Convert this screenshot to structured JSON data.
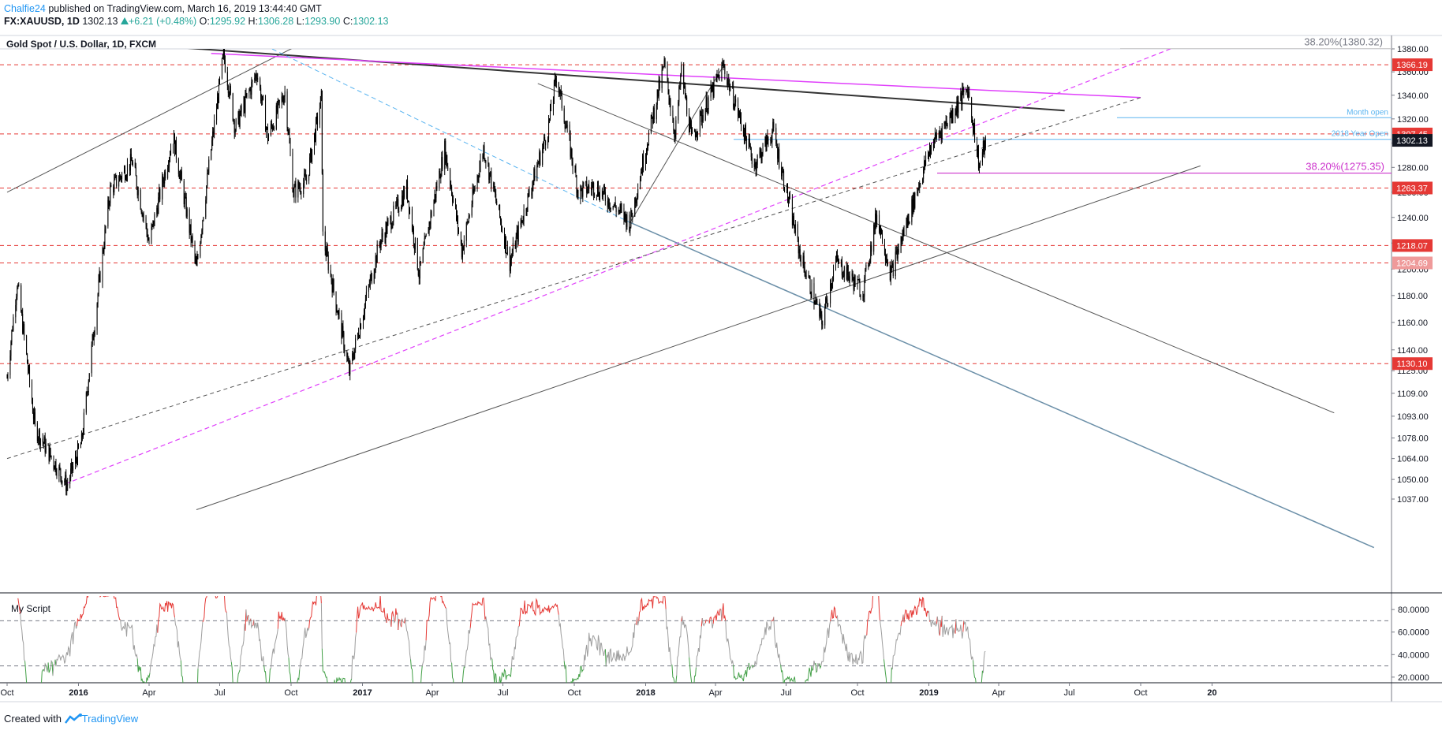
{
  "header": {
    "author": "Chalfie24",
    "published_text": "published on TradingView.com, March 16, 2019 13:44:40 GMT",
    "symbol": "FX:XAUUSD, 1D",
    "last": "1302.13",
    "change": "+6.21 (+0.48%)",
    "open_label": "O:",
    "open": "1295.92",
    "high_label": "H:",
    "high": "1306.28",
    "low_label": "L:",
    "low": "1293.90",
    "close_label": "C:",
    "close": "1302.13"
  },
  "chart_title": "Gold Spot / U.S. Dollar, 1D, FXCM",
  "indicator_title": "My Script",
  "footer": {
    "created_with": "Created with",
    "brand": "TradingView"
  },
  "colors": {
    "candle": "#000000",
    "resistance_red": "#e53935",
    "fib_magenta": "#cc33cc",
    "pivot_blue": "#5ab4f0",
    "trend_black": "#555555",
    "rsi_gray": "#9e9e9e",
    "rsi_overbought": "#e53935",
    "rsi_oversold": "#43a047"
  },
  "chart_data": {
    "type": "candlestick",
    "title": "Gold Spot / U.S. Dollar, 1D, FXCM",
    "x_tick_labels": [
      "Oct",
      "2016",
      "Apr",
      "Jul",
      "Oct",
      "2017",
      "Apr",
      "Jul",
      "Oct",
      "2018",
      "Apr",
      "Jul",
      "Oct",
      "2019",
      "Apr",
      "Jul",
      "Oct",
      "20"
    ],
    "y_tick_labels": [
      "1380.00",
      "1360.00",
      "1340.00",
      "1320.00",
      "1300.00",
      "1280.00",
      "1260.00",
      "1240.00",
      "1220.00",
      "1200.00",
      "1180.00",
      "1160.00",
      "1140.00",
      "1125.00",
      "1109.00",
      "1093.00",
      "1078.00",
      "1064.00",
      "1050.00",
      "1037.00"
    ],
    "y_axis_scale": "log",
    "ylim": [
      1030,
      1392
    ],
    "price_labels": [
      {
        "value": 1366.19,
        "text": "1366.19",
        "style": "red"
      },
      {
        "value": 1307.45,
        "text": "1307.45",
        "style": "red"
      },
      {
        "value": 1302.13,
        "text": "1302.13",
        "style": "last"
      },
      {
        "value": 1263.37,
        "text": "1263.37",
        "style": "red"
      },
      {
        "value": 1218.07,
        "text": "1218.07",
        "style": "red"
      },
      {
        "value": 1204.69,
        "text": "1204.69",
        "style": "red"
      },
      {
        "value": 1130.1,
        "text": "1130.10",
        "style": "red"
      }
    ],
    "horizontal_levels": [
      {
        "value": 1366.19,
        "style": "red-dash"
      },
      {
        "value": 1307.45,
        "style": "red-dash"
      },
      {
        "value": 1263.37,
        "style": "red-dash"
      },
      {
        "value": 1218.07,
        "style": "red-dash"
      },
      {
        "value": 1204.69,
        "style": "red-dash"
      },
      {
        "value": 1130.1,
        "style": "red-dash"
      }
    ],
    "annotations": [
      {
        "text": "38.20%(1380.32)",
        "value": 1380.32
      },
      {
        "text": "38.20%(1275.35)",
        "value": 1275.35
      },
      {
        "text": "Month open",
        "value": 1321
      },
      {
        "text": "2018 Year Open",
        "value": 1303
      }
    ],
    "ohlc_last": {
      "open": 1295.92,
      "high": 1306.28,
      "low": 1293.9,
      "close": 1302.13
    },
    "swing_path": [
      [
        "2015-10-01",
        1120
      ],
      [
        "2015-10-14",
        1190
      ],
      [
        "2015-11-06",
        1085
      ],
      [
        "2015-12-17",
        1046
      ],
      [
        "2016-01-05",
        1075
      ],
      [
        "2016-02-11",
        1262
      ],
      [
        "2016-03-10",
        1285
      ],
      [
        "2016-04-01",
        1220
      ],
      [
        "2016-05-02",
        1305
      ],
      [
        "2016-06-01",
        1200
      ],
      [
        "2016-07-06",
        1375
      ],
      [
        "2016-07-21",
        1312
      ],
      [
        "2016-08-18",
        1360
      ],
      [
        "2016-09-01",
        1305
      ],
      [
        "2016-09-23",
        1343
      ],
      [
        "2016-10-04",
        1260
      ],
      [
        "2016-10-21",
        1270
      ],
      [
        "2016-11-09",
        1337
      ],
      [
        "2016-11-11",
        1225
      ],
      [
        "2016-12-15",
        1124
      ],
      [
        "2017-01-23",
        1220
      ],
      [
        "2017-02-27",
        1263
      ],
      [
        "2017-03-15",
        1196
      ],
      [
        "2017-04-17",
        1295
      ],
      [
        "2017-05-09",
        1214
      ],
      [
        "2017-06-06",
        1296
      ],
      [
        "2017-07-10",
        1205
      ],
      [
        "2017-08-28",
        1311
      ],
      [
        "2017-09-08",
        1357
      ],
      [
        "2017-10-06",
        1260
      ],
      [
        "2017-10-27",
        1265
      ],
      [
        "2017-12-12",
        1236
      ],
      [
        "2018-01-25",
        1366
      ],
      [
        "2018-02-08",
        1306
      ],
      [
        "2018-02-16",
        1361
      ],
      [
        "2018-03-01",
        1303
      ],
      [
        "2018-04-11",
        1365
      ],
      [
        "2018-05-21",
        1282
      ],
      [
        "2018-06-14",
        1310
      ],
      [
        "2018-07-19",
        1211
      ],
      [
        "2018-08-16",
        1160
      ],
      [
        "2018-09-03",
        1206
      ],
      [
        "2018-10-08",
        1183
      ],
      [
        "2018-10-26",
        1243
      ],
      [
        "2018-11-13",
        1196
      ],
      [
        "2018-12-20",
        1268
      ],
      [
        "2019-01-04",
        1298
      ],
      [
        "2019-01-31",
        1325
      ],
      [
        "2019-02-20",
        1346
      ],
      [
        "2019-03-07",
        1281
      ],
      [
        "2019-03-15",
        1302.13
      ]
    ],
    "indicator": {
      "name": "My Script",
      "y_tick_labels": [
        "80.0000",
        "60.0000",
        "40.0000",
        "20.0000"
      ],
      "ylim": [
        15,
        92
      ],
      "levels": [
        70,
        30
      ]
    }
  }
}
